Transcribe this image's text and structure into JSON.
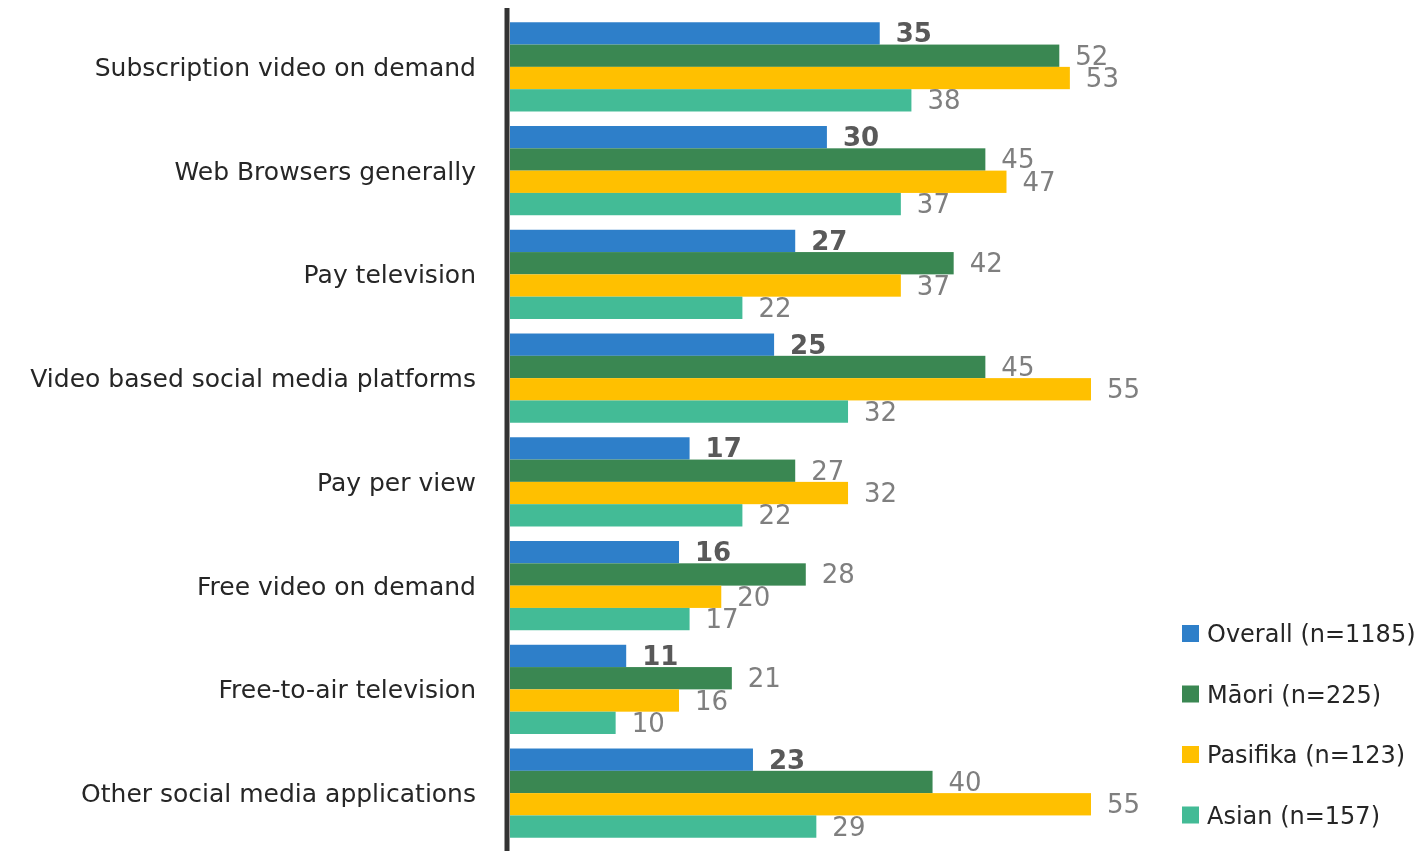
{
  "chart_data": {
    "type": "bar",
    "orientation": "horizontal",
    "data_labels": true,
    "legend": "bottom right",
    "categories": [
      "Subscription video on demand",
      "Web Browsers generally",
      "Pay television",
      "Video based social media platforms",
      "Pay per view",
      "Free video on demand",
      "Free-to-air television",
      "Other social media applications"
    ],
    "series": [
      {
        "name": "Overall (n=1185)",
        "color": "#2e7fc9",
        "values": [
          35,
          30,
          27,
          25,
          17,
          16,
          11,
          23
        ]
      },
      {
        "name": "Māori (n=225)",
        "color": "#3a8752",
        "values": [
          52,
          45,
          42,
          45,
          27,
          28,
          21,
          40
        ]
      },
      {
        "name": "Pasifika (n=123)",
        "color": "#ffc000",
        "values": [
          53,
          47,
          37,
          55,
          32,
          20,
          16,
          55
        ]
      },
      {
        "name": "Asian (n=157)",
        "color": "#43bb96",
        "values": [
          38,
          37,
          22,
          32,
          22,
          17,
          10,
          29
        ]
      }
    ]
  }
}
